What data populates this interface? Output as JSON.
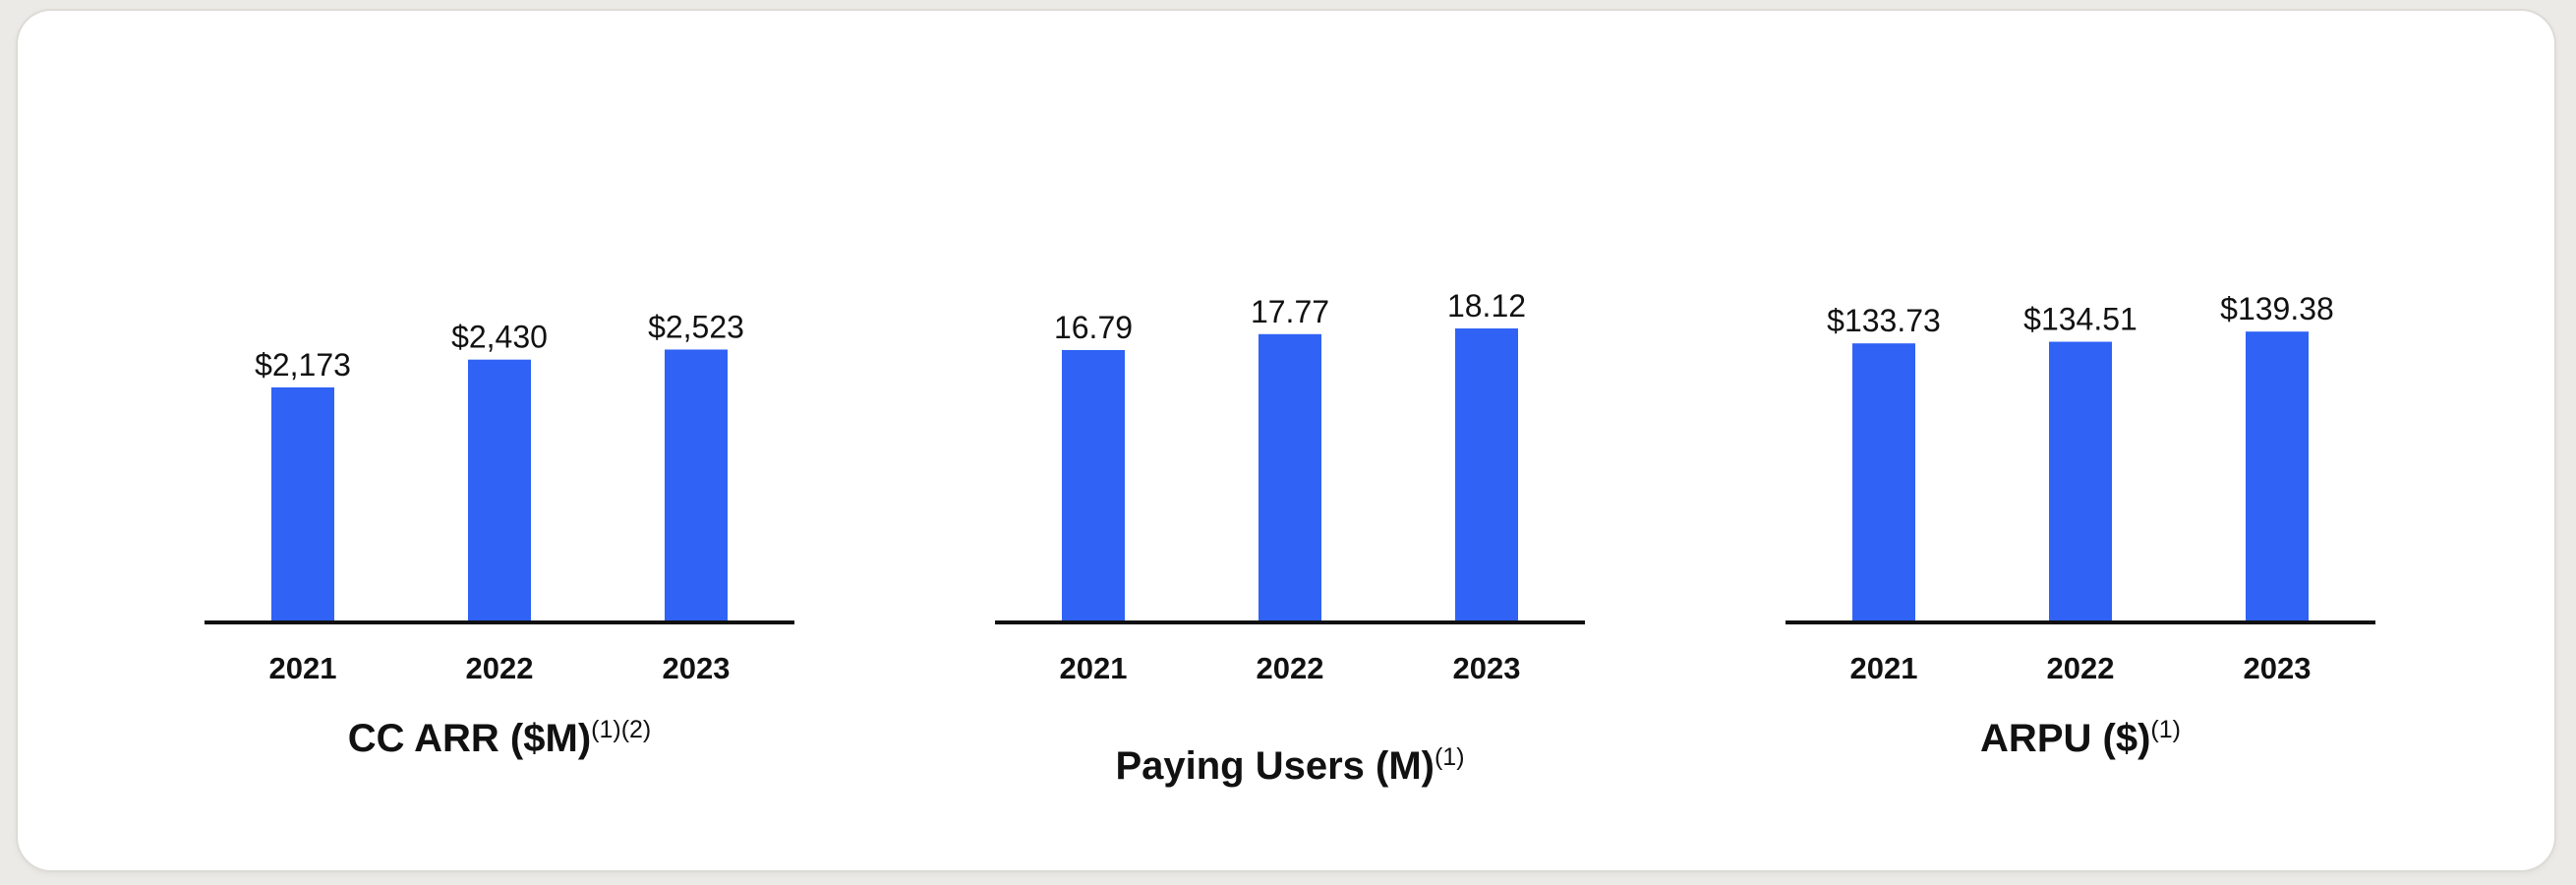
{
  "chart_data": [
    {
      "type": "bar",
      "title": "CC ARR ($M)",
      "title_superscript": "(1)(2)",
      "categories": [
        "2021",
        "2022",
        "2023"
      ],
      "values": [
        2173,
        2430,
        2523
      ],
      "value_labels": [
        "$2,173",
        "$2,430",
        "$2,523"
      ],
      "ylim": [
        0,
        3000
      ],
      "grid": false,
      "color": "#2f62f5"
    },
    {
      "type": "bar",
      "title": "Paying Users (M)",
      "title_superscript": "(1)",
      "categories": [
        "2021",
        "2022",
        "2023"
      ],
      "values": [
        16.79,
        17.77,
        18.12
      ],
      "value_labels": [
        "16.79",
        "17.77",
        "18.12"
      ],
      "ylim": [
        0,
        20
      ],
      "grid": false,
      "color": "#2f62f5"
    },
    {
      "type": "bar",
      "title": "ARPU ($)",
      "title_superscript": "(1)",
      "categories": [
        "2021",
        "2022",
        "2023"
      ],
      "values": [
        133.73,
        134.51,
        139.38
      ],
      "value_labels": [
        "$133.73",
        "$134.51",
        "$139.38"
      ],
      "ylim": [
        0,
        155.5
      ],
      "grid": false,
      "color": "#2f62f5"
    }
  ]
}
